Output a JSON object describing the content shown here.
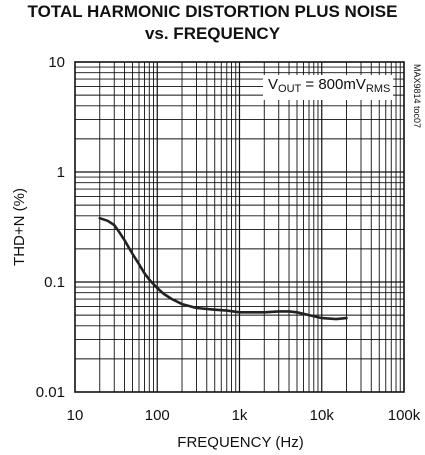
{
  "chart_data": {
    "type": "line",
    "title": "TOTAL HARMONIC DISTORTION PLUS NOISE",
    "subtitle": "vs. FREQUENCY",
    "xlabel": "FREQUENCY (Hz)",
    "ylabel": "THD+N (%)",
    "xscale": "log",
    "yscale": "log",
    "xlim": [
      10,
      100000
    ],
    "ylim": [
      0.01,
      10
    ],
    "x_tick_labels": [
      "10",
      "100",
      "1k",
      "10k",
      "100k"
    ],
    "y_tick_labels": [
      "10",
      "1",
      "0.1",
      "0.01"
    ],
    "grid": true,
    "annotation": {
      "prefix": "V",
      "sub1": "OUT",
      "mid": " = 800mV",
      "sub2": "RMS"
    },
    "figure_tag": "MAX9814 toc07",
    "series": [
      {
        "x": [
          20,
          25,
          30,
          35,
          40,
          50,
          60,
          70,
          80,
          100,
          120,
          150,
          200,
          300,
          500,
          700,
          1000,
          1500,
          2000,
          3000,
          4000,
          5000,
          7000,
          10000,
          15000,
          20000
        ],
        "y": [
          0.38,
          0.36,
          0.33,
          0.28,
          0.24,
          0.18,
          0.145,
          0.12,
          0.105,
          0.088,
          0.078,
          0.07,
          0.063,
          0.058,
          0.056,
          0.055,
          0.053,
          0.053,
          0.053,
          0.054,
          0.054,
          0.053,
          0.05,
          0.047,
          0.046,
          0.047
        ]
      }
    ]
  }
}
